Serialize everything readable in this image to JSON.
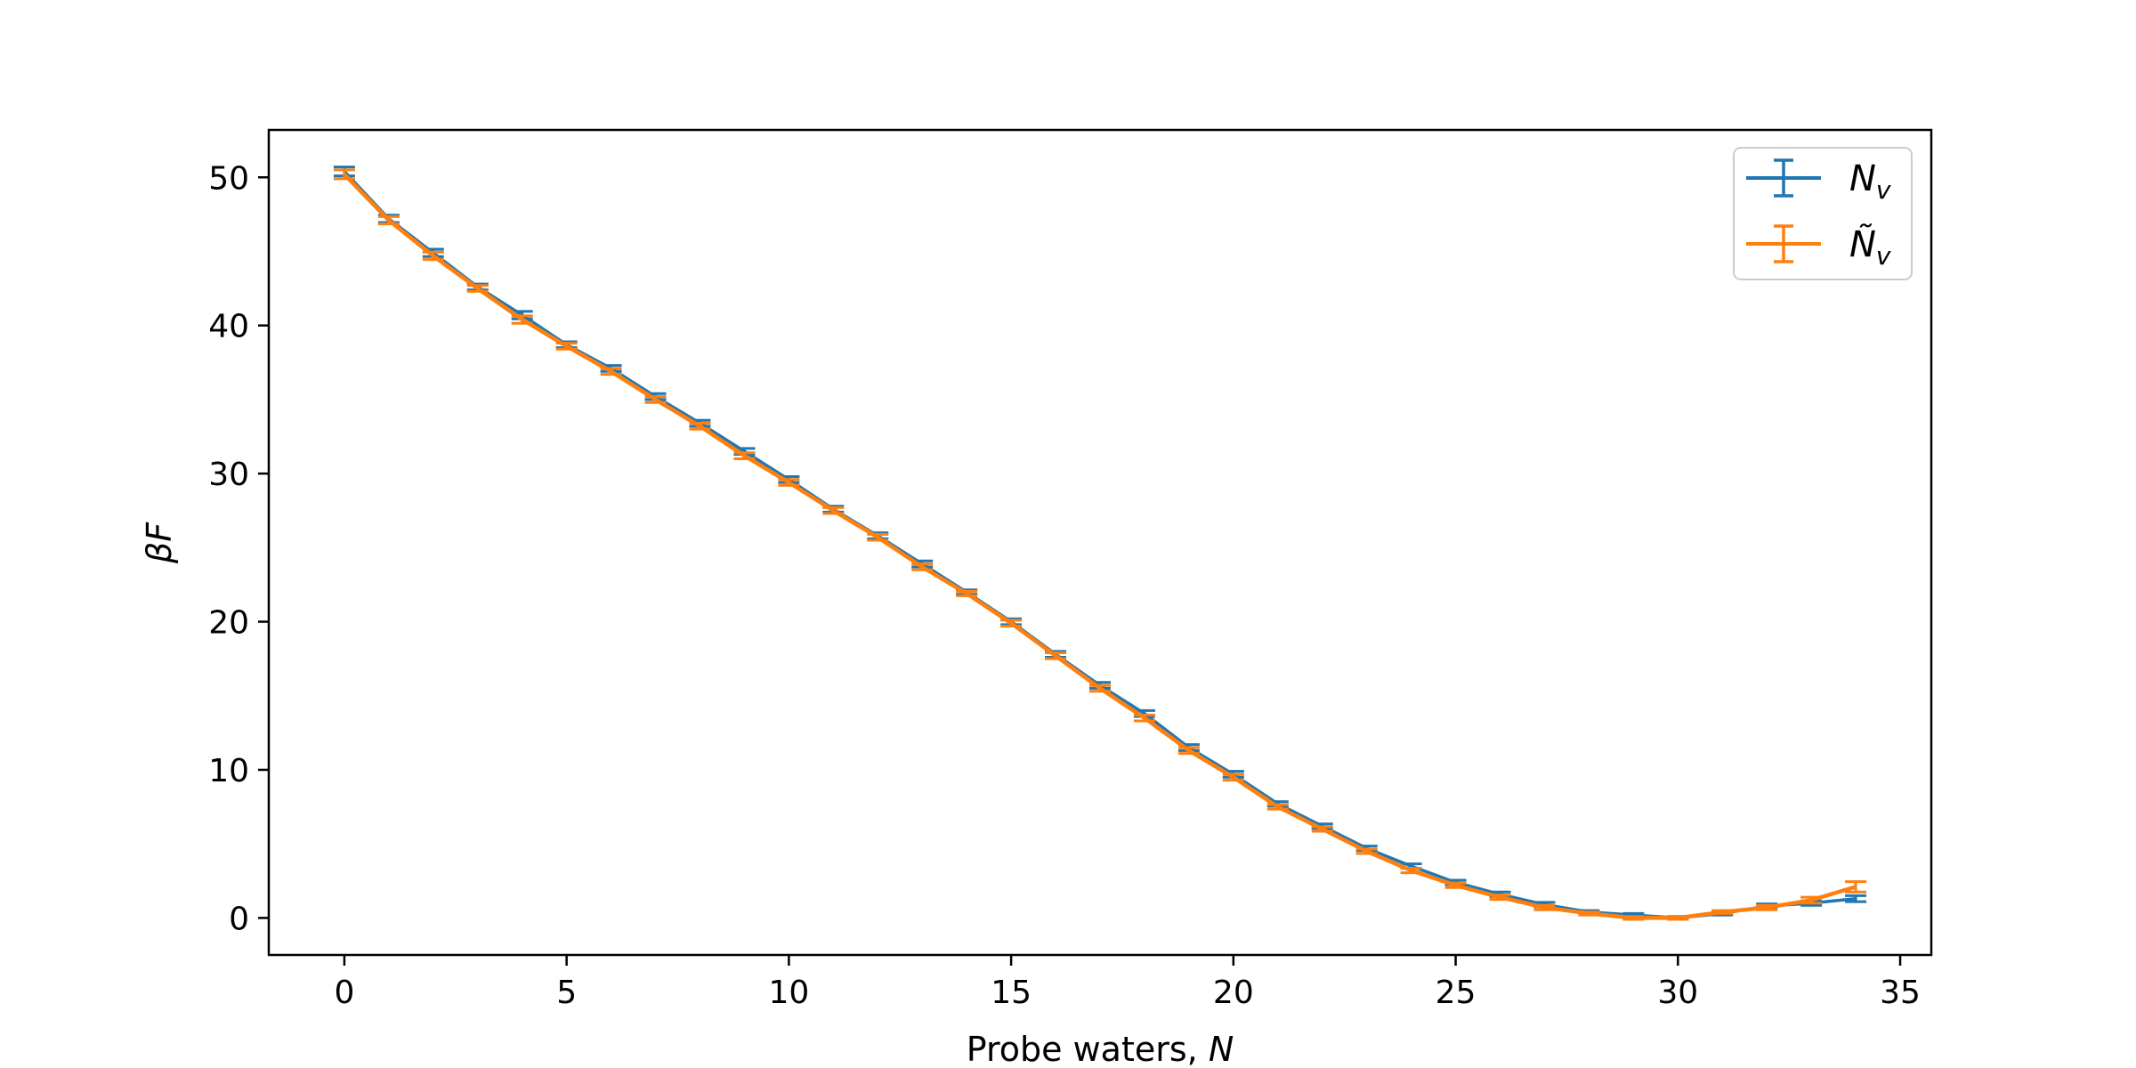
{
  "chart_data": {
    "type": "line",
    "title": "",
    "xlabel": "Probe waters, ",
    "xlabel_var": "N",
    "ylabel": "βF",
    "xlim": [
      -1.7,
      35.7
    ],
    "ylim": [
      -2.5,
      53.2
    ],
    "xticks": [
      0,
      5,
      10,
      15,
      20,
      25,
      30,
      35
    ],
    "yticks": [
      0,
      10,
      20,
      30,
      40,
      50
    ],
    "grid": false,
    "legend_placement": "top-right",
    "x": [
      0,
      1,
      2,
      3,
      4,
      5,
      6,
      7,
      8,
      9,
      10,
      11,
      12,
      13,
      14,
      15,
      16,
      17,
      18,
      19,
      20,
      21,
      22,
      23,
      24,
      25,
      26,
      27,
      28,
      29,
      30,
      31,
      32,
      33,
      34
    ],
    "series": [
      {
        "name": "N",
        "name_sub": "v",
        "name_tilde": false,
        "color": "#1f77b4",
        "values": [
          50.4,
          47.2,
          44.9,
          42.6,
          40.7,
          38.7,
          37.1,
          35.2,
          33.4,
          31.5,
          29.6,
          27.6,
          25.8,
          23.9,
          22.0,
          20.0,
          17.8,
          15.7,
          13.8,
          11.5,
          9.7,
          7.7,
          6.2,
          4.7,
          3.5,
          2.4,
          1.6,
          0.9,
          0.4,
          0.2,
          0.0,
          0.3,
          0.8,
          1.0,
          1.3
        ],
        "errors": [
          0.3,
          0.25,
          0.25,
          0.2,
          0.25,
          0.2,
          0.2,
          0.2,
          0.2,
          0.2,
          0.2,
          0.2,
          0.2,
          0.2,
          0.15,
          0.2,
          0.2,
          0.2,
          0.2,
          0.2,
          0.2,
          0.15,
          0.15,
          0.15,
          0.15,
          0.15,
          0.15,
          0.15,
          0.1,
          0.1,
          0.1,
          0.1,
          0.15,
          0.15,
          0.2
        ]
      },
      {
        "name": "N",
        "name_sub": "v",
        "name_tilde": true,
        "color": "#ff7f0e",
        "values": [
          50.2,
          47.1,
          44.7,
          42.5,
          40.4,
          38.6,
          36.9,
          35.0,
          33.2,
          31.2,
          29.4,
          27.5,
          25.7,
          23.7,
          21.9,
          19.9,
          17.7,
          15.5,
          13.5,
          11.3,
          9.5,
          7.5,
          6.0,
          4.5,
          3.2,
          2.2,
          1.4,
          0.7,
          0.3,
          0.0,
          0.0,
          0.4,
          0.7,
          1.2,
          2.1
        ],
        "errors": [
          0.3,
          0.25,
          0.25,
          0.2,
          0.25,
          0.2,
          0.2,
          0.2,
          0.2,
          0.2,
          0.2,
          0.2,
          0.2,
          0.2,
          0.15,
          0.2,
          0.2,
          0.2,
          0.2,
          0.2,
          0.2,
          0.15,
          0.15,
          0.15,
          0.15,
          0.15,
          0.15,
          0.15,
          0.1,
          0.1,
          0.1,
          0.1,
          0.15,
          0.2,
          0.35
        ]
      }
    ]
  }
}
